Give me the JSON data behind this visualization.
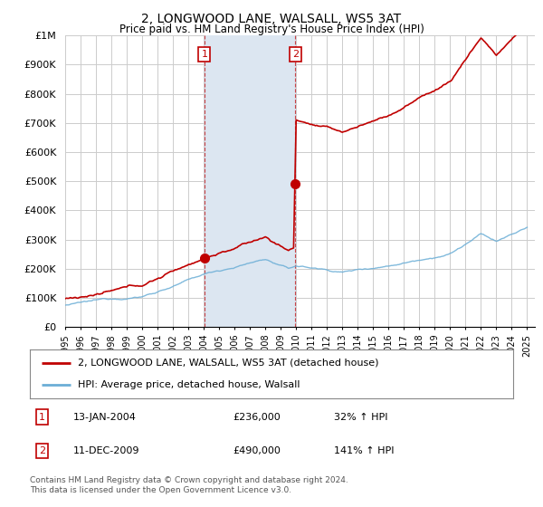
{
  "title": "2, LONGWOOD LANE, WALSALL, WS5 3AT",
  "subtitle": "Price paid vs. HM Land Registry's House Price Index (HPI)",
  "ylim": [
    0,
    1000000
  ],
  "yticks": [
    0,
    100000,
    200000,
    300000,
    400000,
    500000,
    600000,
    700000,
    800000,
    900000,
    1000000
  ],
  "ytick_labels": [
    "£0",
    "£100K",
    "£200K",
    "£300K",
    "£400K",
    "£500K",
    "£600K",
    "£700K",
    "£800K",
    "£900K",
    "£1M"
  ],
  "xlim_start": 1995.0,
  "xlim_end": 2025.5,
  "xtick_years": [
    1995,
    1996,
    1997,
    1998,
    1999,
    2000,
    2001,
    2002,
    2003,
    2004,
    2005,
    2006,
    2007,
    2008,
    2009,
    2010,
    2011,
    2012,
    2013,
    2014,
    2015,
    2016,
    2017,
    2018,
    2019,
    2020,
    2021,
    2022,
    2023,
    2024,
    2025
  ],
  "sale1_x": 2004.04,
  "sale1_y": 236000,
  "sale1_label": "1",
  "sale1_date": "13-JAN-2004",
  "sale1_price": "£236,000",
  "sale1_hpi": "32% ↑ HPI",
  "sale2_x": 2009.95,
  "sale2_y": 490000,
  "sale2_label": "2",
  "sale2_date": "11-DEC-2009",
  "sale2_price": "£490,000",
  "sale2_hpi": "141% ↑ HPI",
  "hpi_line_color": "#6baed6",
  "sale_line_color": "#c00000",
  "sale_dot_color": "#c00000",
  "shade_color": "#dce6f1",
  "marker_box_color": "#c00000",
  "legend_line1": "2, LONGWOOD LANE, WALSALL, WS5 3AT (detached house)",
  "legend_line2": "HPI: Average price, detached house, Walsall",
  "footer": "Contains HM Land Registry data © Crown copyright and database right 2024.\nThis data is licensed under the Open Government Licence v3.0.",
  "background_color": "#ffffff",
  "grid_color": "#cccccc"
}
